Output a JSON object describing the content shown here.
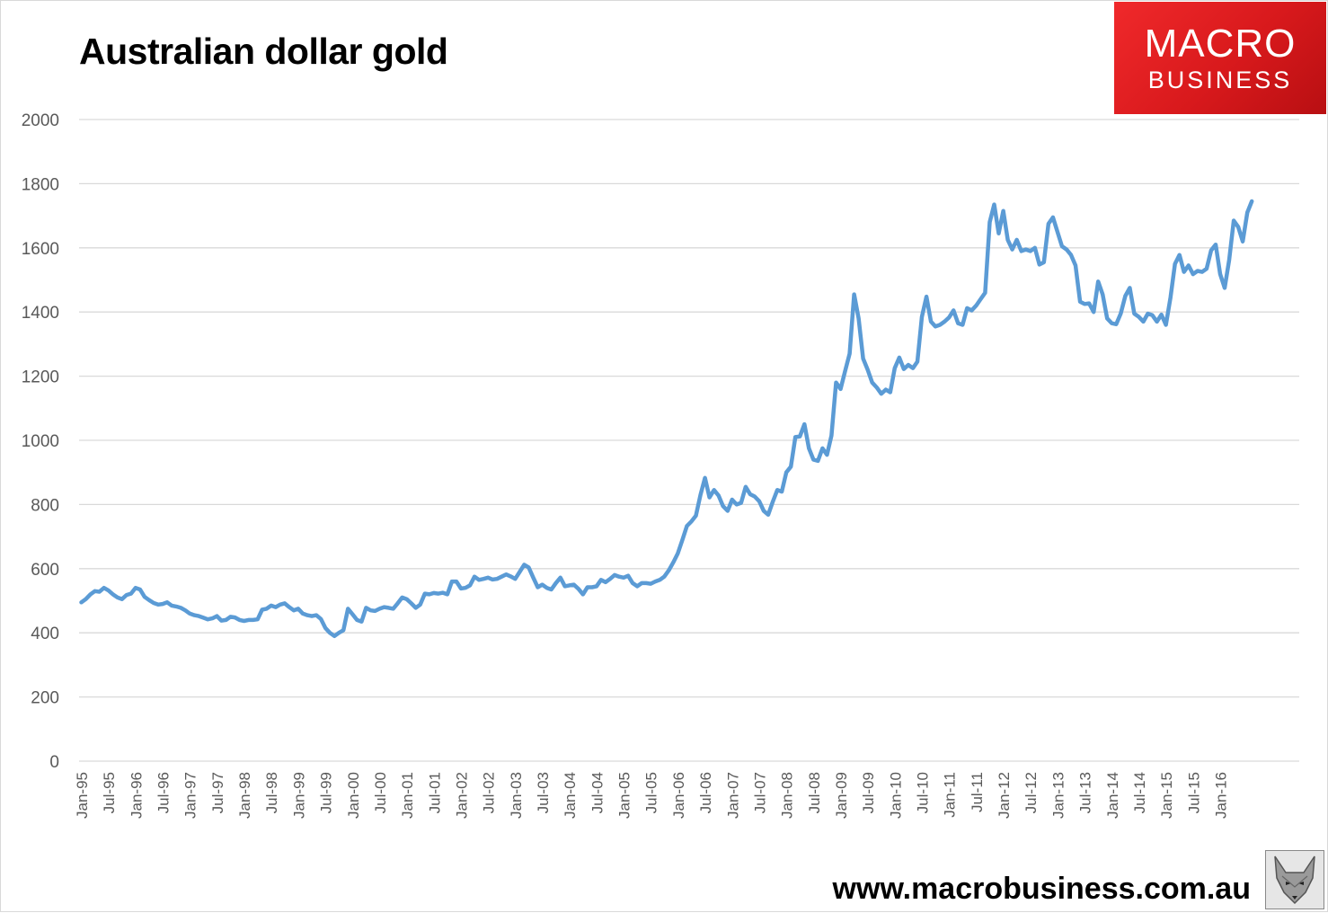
{
  "title": "Australian dollar gold",
  "logo": {
    "line1": "MACRO",
    "line2": "BUSINESS"
  },
  "footer": {
    "url": "www.macrobusiness.com.au"
  },
  "colors": {
    "series": "#5b9bd5",
    "grid": "#d9d9d9",
    "logo_red": "#e02022"
  },
  "icons": {
    "logo": "macro-business-logo",
    "mascot": "fox-icon"
  },
  "chart_data": {
    "type": "line",
    "title": "Australian dollar gold",
    "xlabel": "",
    "ylabel": "",
    "ylim": [
      0,
      2000
    ],
    "yticks": [
      0,
      200,
      400,
      600,
      800,
      1000,
      1200,
      1400,
      1600,
      1800,
      2000
    ],
    "xticks": [
      "Jan-95",
      "Jul-95",
      "Jan-96",
      "Jul-96",
      "Jan-97",
      "Jul-97",
      "Jan-98",
      "Jul-98",
      "Jan-99",
      "Jul-99",
      "Jan-00",
      "Jul-00",
      "Jan-01",
      "Jul-01",
      "Jan-02",
      "Jul-02",
      "Jan-03",
      "Jul-03",
      "Jan-04",
      "Jul-04",
      "Jan-05",
      "Jul-05",
      "Jan-06",
      "Jul-06",
      "Jan-07",
      "Jul-07",
      "Jan-08",
      "Jul-08",
      "Jan-09",
      "Jul-09",
      "Jan-10",
      "Jul-10",
      "Jan-11",
      "Jul-11",
      "Jan-12",
      "Jul-12",
      "Jan-13",
      "Jul-13",
      "Jan-14",
      "Jul-14",
      "Jan-15",
      "Jul-15",
      "Jan-16"
    ],
    "x_start": "Jan-95",
    "x_frequency": "monthly",
    "grid": true,
    "legend": "none",
    "series": [
      {
        "values": [
          495,
          505,
          520,
          530,
          528,
          540,
          532,
          520,
          510,
          505,
          518,
          522,
          540,
          535,
          512,
          502,
          493,
          488,
          490,
          495,
          485,
          482,
          478,
          470,
          460,
          455,
          452,
          447,
          442,
          445,
          452,
          438,
          440,
          450,
          448,
          440,
          437,
          440,
          440,
          442,
          472,
          475,
          485,
          480,
          488,
          492,
          480,
          470,
          475,
          460,
          455,
          452,
          455,
          443,
          415,
          400,
          390,
          400,
          408,
          475,
          458,
          440,
          435,
          478,
          470,
          468,
          475,
          480,
          478,
          475,
          492,
          510,
          505,
          492,
          478,
          488,
          522,
          520,
          524,
          522,
          525,
          520,
          560,
          560,
          538,
          540,
          548,
          575,
          565,
          568,
          572,
          566,
          568,
          575,
          582,
          576,
          568,
          590,
          612,
          604,
          572,
          542,
          550,
          540,
          535,
          555,
          572,
          545,
          548,
          550,
          537,
          520,
          542,
          542,
          545,
          565,
          558,
          568,
          580,
          575,
          572,
          578,
          555,
          545,
          555,
          555,
          553,
          560,
          565,
          575,
          595,
          620,
          648,
          690,
          733,
          747,
          765,
          830,
          883,
          822,
          845,
          828,
          795,
          780,
          815,
          800,
          805,
          855,
          832,
          825,
          810,
          780,
          768,
          808,
          845,
          840,
          900,
          918,
          1010,
          1012,
          1050,
          975,
          940,
          936,
          975,
          955,
          1015,
          1180,
          1160,
          1215,
          1270,
          1455,
          1380,
          1255,
          1220,
          1180,
          1165,
          1145,
          1158,
          1150,
          1225,
          1258,
          1222,
          1235,
          1225,
          1245,
          1385,
          1448,
          1370,
          1355,
          1360,
          1370,
          1383,
          1405,
          1365,
          1360,
          1412,
          1405,
          1420,
          1440,
          1460,
          1680,
          1735,
          1645,
          1715,
          1625,
          1595,
          1625,
          1590,
          1595,
          1590,
          1600,
          1548,
          1555,
          1675,
          1695,
          1650,
          1605,
          1595,
          1578,
          1545,
          1432,
          1425,
          1427,
          1400,
          1495,
          1455,
          1380,
          1365,
          1362,
          1395,
          1450,
          1475,
          1395,
          1385,
          1370,
          1395,
          1390,
          1370,
          1392,
          1360,
          1445,
          1550,
          1578,
          1525,
          1545,
          1518,
          1528,
          1525,
          1535,
          1592,
          1610,
          1518,
          1475,
          1562,
          1685,
          1665,
          1620,
          1710,
          1745
        ]
      }
    ]
  }
}
